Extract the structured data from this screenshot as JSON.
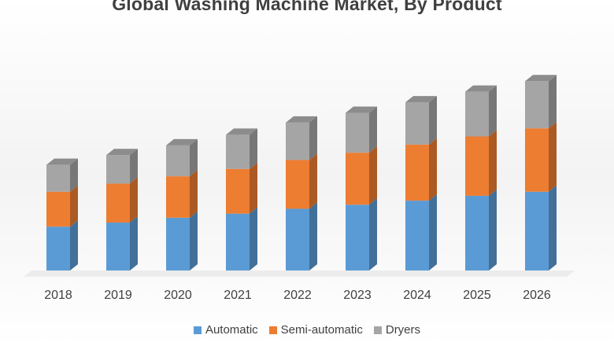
{
  "chart_data": {
    "type": "bar",
    "stacked": true,
    "title": "Global Washing Machine Market, By Product",
    "categories": [
      "2018",
      "2019",
      "2020",
      "2021",
      "2022",
      "2023",
      "2024",
      "2025",
      "2026"
    ],
    "series": [
      {
        "name": "Automatic",
        "color": "#5B9BD5",
        "values": [
          54,
          59,
          65,
          70,
          76,
          81,
          86,
          92,
          97
        ]
      },
      {
        "name": "Semi-automatic",
        "color": "#ED7D31",
        "values": [
          43,
          48,
          51,
          55,
          60,
          64,
          69,
          73,
          78
        ]
      },
      {
        "name": "Dryers",
        "color": "#A5A5A5",
        "values": [
          33,
          35,
          38,
          42,
          46,
          49,
          52,
          55,
          58
        ]
      }
    ],
    "xlabel": "",
    "ylabel": "",
    "ylim": [
      0,
      240
    ],
    "grid": false,
    "legend_position": "bottom"
  }
}
